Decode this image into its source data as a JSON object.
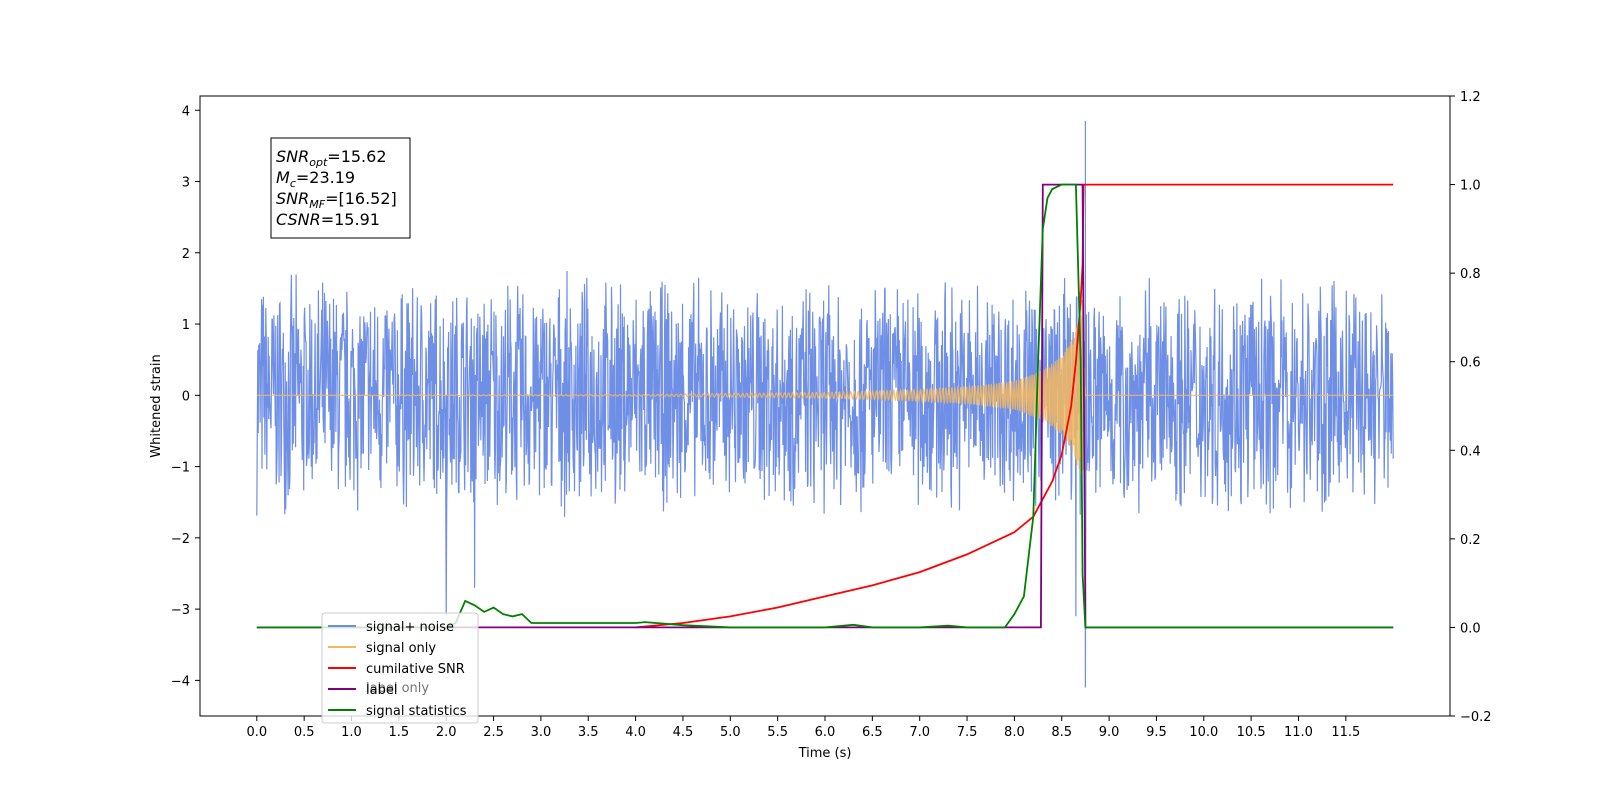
{
  "chart_data": {
    "type": "line",
    "xlabel": "Time (s)",
    "ylabel": "Whitened strain",
    "x_ticks": [
      "0.0",
      "0.5",
      "1.0",
      "1.5",
      "2.0",
      "2.5",
      "3.0",
      "3.5",
      "4.0",
      "4.5",
      "5.0",
      "5.5",
      "6.0",
      "6.5",
      "7.0",
      "7.5",
      "8.0",
      "8.5",
      "9.0",
      "9.5",
      "10.0",
      "10.5",
      "11.0",
      "11.5"
    ],
    "y_left_ticks": [
      "4",
      "3",
      "2",
      "1",
      "0",
      "−1",
      "−2",
      "−3",
      "−4"
    ],
    "y_right_ticks": [
      "1.2",
      "1.0",
      "0.8",
      "0.6",
      "0.4",
      "0.2",
      "0.0",
      "−0.2"
    ],
    "xlim": [
      -0.6,
      12.6
    ],
    "ylim_left": [
      -4.5,
      4.2
    ],
    "ylim_right": [
      -0.2,
      1.2
    ],
    "legend_position": "lower-left",
    "annotation": {
      "lines": [
        {
          "base": "SNR",
          "sub": "opt",
          "value": "=15.62"
        },
        {
          "base": "M",
          "sub": "c",
          "value": "=23.19"
        },
        {
          "base": "SNR",
          "sub": "MF",
          "value": "=[16.52]"
        },
        {
          "base": "CSNR",
          "sub": "",
          "value": "=15.91"
        }
      ]
    },
    "legend_extra_label": "label only",
    "series": [
      {
        "name": "signal+ noise",
        "axis": "left",
        "color": "#6f8fe6",
        "kind": "noise",
        "x_range": [
          0.0,
          12.0
        ],
        "amplitude_envelope": 1.75,
        "spikes": [
          [
            2.0,
            -3.1
          ],
          [
            2.3,
            -2.7
          ],
          [
            8.75,
            3.85
          ],
          [
            8.75,
            -4.1
          ],
          [
            8.65,
            -3.1
          ]
        ]
      },
      {
        "name": "signal only",
        "axis": "left",
        "color": "#f5b95e",
        "kind": "chirp",
        "x_range": [
          0.0,
          8.75
        ],
        "envelope": [
          [
            0.0,
            0.0
          ],
          [
            4.0,
            0.01
          ],
          [
            6.0,
            0.04
          ],
          [
            7.0,
            0.08
          ],
          [
            7.5,
            0.12
          ],
          [
            8.0,
            0.2
          ],
          [
            8.3,
            0.35
          ],
          [
            8.5,
            0.55
          ],
          [
            8.65,
            0.9
          ],
          [
            8.72,
            1.4
          ],
          [
            8.75,
            0.0
          ]
        ]
      },
      {
        "name": "cumilative SNR",
        "axis": "right",
        "color": "#ff0000",
        "x": [
          4.0,
          4.5,
          5.0,
          5.5,
          6.0,
          6.5,
          7.0,
          7.5,
          8.0,
          8.2,
          8.4,
          8.5,
          8.6,
          8.65,
          8.7,
          8.72,
          8.73,
          8.75,
          12.0
        ],
        "y": [
          0.0,
          0.01,
          0.025,
          0.045,
          0.07,
          0.095,
          0.125,
          0.165,
          0.215,
          0.25,
          0.33,
          0.39,
          0.5,
          0.6,
          0.74,
          0.82,
          1.0,
          1.0,
          1.0
        ]
      },
      {
        "name": "label",
        "axis": "right",
        "color": "#800080",
        "x": [
          0.0,
          8.28,
          8.3,
          8.72,
          8.75,
          12.0
        ],
        "y": [
          0.0,
          0.0,
          1.0,
          1.0,
          0.0,
          0.0
        ]
      },
      {
        "name": "signal statistics",
        "axis": "right",
        "color": "#008000",
        "x": [
          0.0,
          2.0,
          2.1,
          2.2,
          2.3,
          2.4,
          2.5,
          2.6,
          2.7,
          2.8,
          2.9,
          3.0,
          3.5,
          4.0,
          4.1,
          4.5,
          5.0,
          6.0,
          6.3,
          6.5,
          7.0,
          7.3,
          7.5,
          7.9,
          8.0,
          8.1,
          8.2,
          8.25,
          8.3,
          8.35,
          8.4,
          8.45,
          8.5,
          8.6,
          8.65,
          8.7,
          8.72,
          8.75,
          8.8,
          12.0
        ],
        "y": [
          0.0,
          0.0,
          0.01,
          0.06,
          0.05,
          0.035,
          0.045,
          0.03,
          0.025,
          0.03,
          0.01,
          0.01,
          0.01,
          0.01,
          0.012,
          0.005,
          0.0,
          0.0,
          0.006,
          0.0,
          0.0,
          0.004,
          0.0,
          0.0,
          0.03,
          0.07,
          0.25,
          0.6,
          0.9,
          0.97,
          0.99,
          0.995,
          1.0,
          1.0,
          1.0,
          0.6,
          0.12,
          0.0,
          0.0,
          0.0
        ]
      }
    ]
  }
}
